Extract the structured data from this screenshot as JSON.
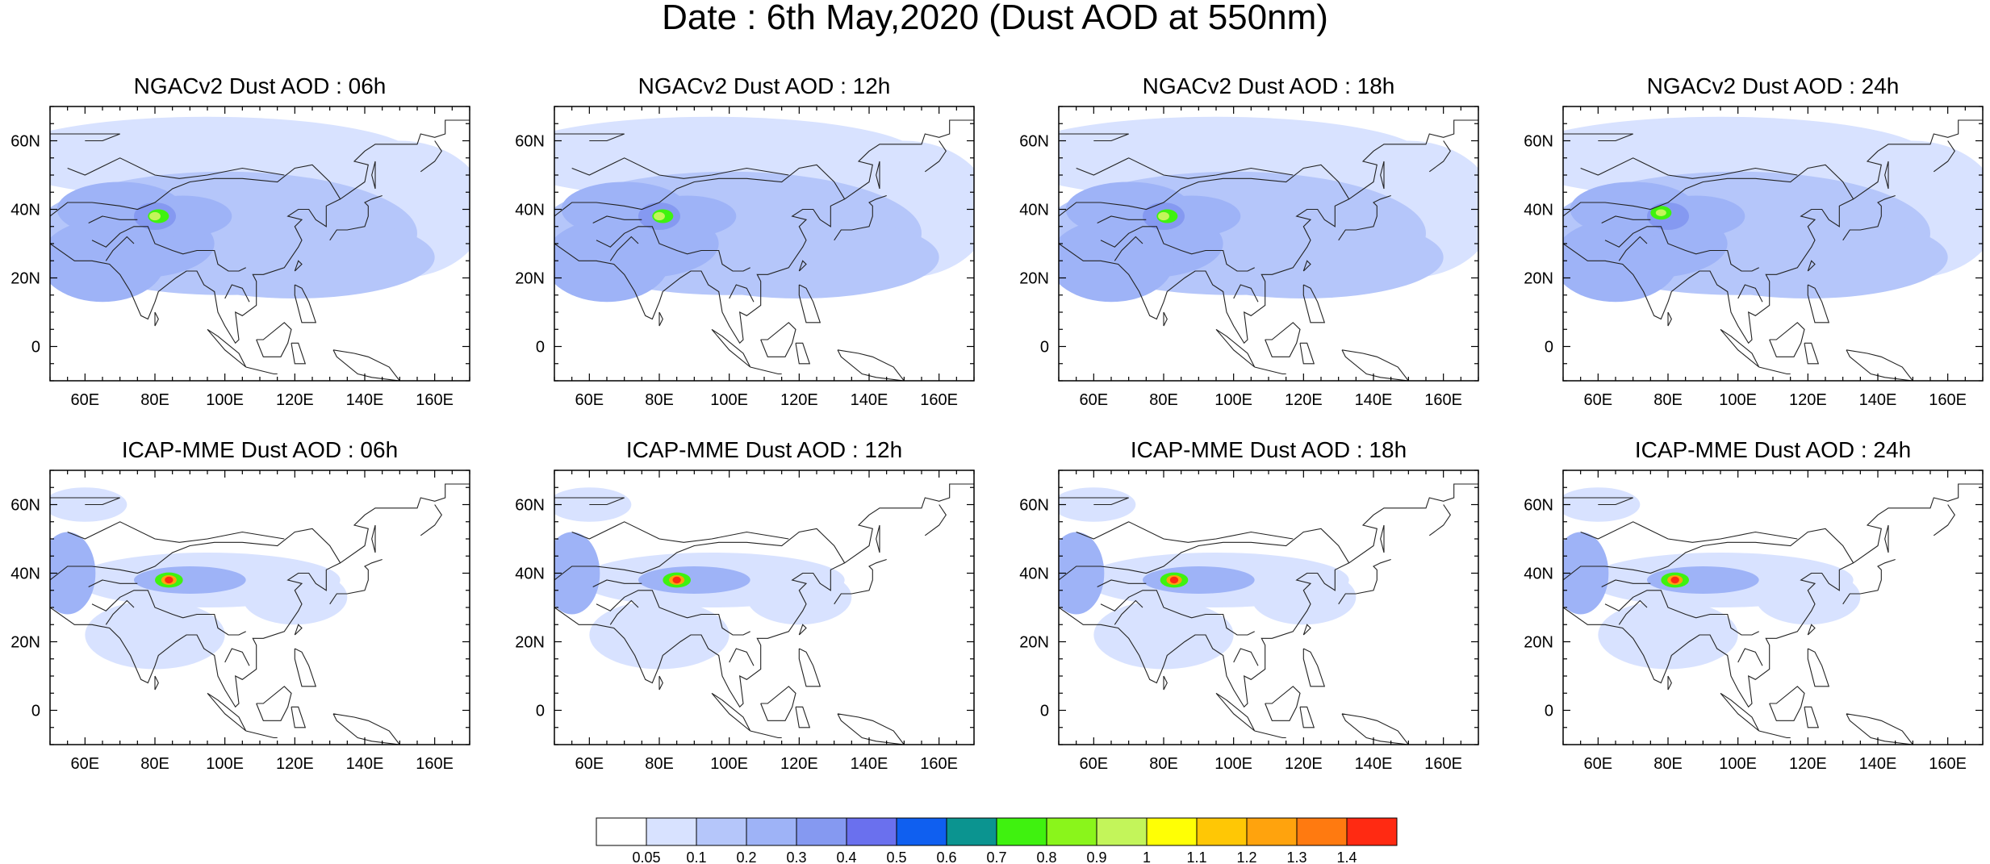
{
  "title": "Date : 6th May,2020 (Dust AOD at 550nm)",
  "axes": {
    "lon_ticks": [
      "60E",
      "80E",
      "100E",
      "120E",
      "140E",
      "160E"
    ],
    "lat_ticks": [
      "60N",
      "40N",
      "20N",
      "0"
    ],
    "lon_range": [
      50,
      170
    ],
    "lat_range": [
      -10,
      70
    ]
  },
  "panels": [
    {
      "title": "NGACv2 Dust AOD : 06h",
      "model": "NGACv2",
      "hour": "06h"
    },
    {
      "title": "NGACv2 Dust AOD : 12h",
      "model": "NGACv2",
      "hour": "12h"
    },
    {
      "title": "NGACv2 Dust AOD : 18h",
      "model": "NGACv2",
      "hour": "18h"
    },
    {
      "title": "NGACv2 Dust AOD : 24h",
      "model": "NGACv2",
      "hour": "24h"
    },
    {
      "title": "ICAP-MME Dust AOD : 06h",
      "model": "ICAP-MME",
      "hour": "06h"
    },
    {
      "title": "ICAP-MME Dust AOD : 12h",
      "model": "ICAP-MME",
      "hour": "12h"
    },
    {
      "title": "ICAP-MME Dust AOD : 18h",
      "model": "ICAP-MME",
      "hour": "18h"
    },
    {
      "title": "ICAP-MME Dust AOD : 24h",
      "model": "ICAP-MME",
      "hour": "24h"
    }
  ],
  "colorbar": {
    "labels": [
      "0.05",
      "0.1",
      "0.2",
      "0.3",
      "0.4",
      "0.5",
      "0.6",
      "0.7",
      "0.8",
      "0.9",
      "1",
      "1.1",
      "1.2",
      "1.3",
      "1.4"
    ],
    "colors": [
      "#ffffff",
      "#d8e2ff",
      "#b5c6fa",
      "#9eb3f7",
      "#8599f1",
      "#6a70ee",
      "#0f5ff0",
      "#0b9490",
      "#3ff20f",
      "#8af51b",
      "#c3f55a",
      "#ffff05",
      "#ffc705",
      "#ffa30d",
      "#ff7a10",
      "#ff2a12"
    ]
  }
}
